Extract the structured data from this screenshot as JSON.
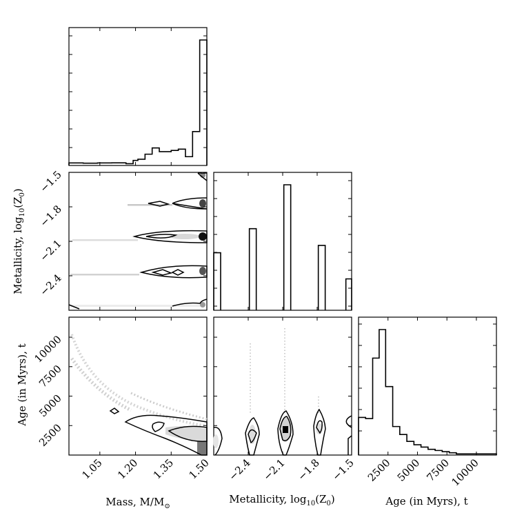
{
  "chart_data": [
    {
      "panel": "hist-mass",
      "type": "histogram",
      "variable": "mass",
      "xlim": [
        0.92,
        1.5
      ],
      "bins": [
        {
          "x0": 0.92,
          "x1": 0.98,
          "v": 2
        },
        {
          "x0": 0.98,
          "x1": 1.04,
          "v": 1.8
        },
        {
          "x0": 1.04,
          "x1": 1.1,
          "v": 2
        },
        {
          "x0": 1.1,
          "x1": 1.16,
          "v": 2.1
        },
        {
          "x0": 1.16,
          "x1": 1.19,
          "v": 1.4
        },
        {
          "x0": 1.19,
          "x1": 1.21,
          "v": 4
        },
        {
          "x0": 1.21,
          "x1": 1.24,
          "v": 5
        },
        {
          "x0": 1.24,
          "x1": 1.27,
          "v": 9
        },
        {
          "x0": 1.27,
          "x1": 1.3,
          "v": 14
        },
        {
          "x0": 1.3,
          "x1": 1.35,
          "v": 11
        },
        {
          "x0": 1.35,
          "x1": 1.38,
          "v": 12
        },
        {
          "x0": 1.38,
          "x1": 1.41,
          "v": 13
        },
        {
          "x0": 1.41,
          "x1": 1.44,
          "v": 7
        },
        {
          "x0": 1.44,
          "x1": 1.47,
          "v": 27
        },
        {
          "x0": 1.47,
          "x1": 1.5,
          "v": 100
        }
      ]
    },
    {
      "panel": "scatter-mass-metallicity",
      "type": "contour",
      "x": "mass",
      "y": "metallicity",
      "xlim": [
        0.92,
        1.5
      ],
      "ylim": [
        -2.7,
        -1.5
      ],
      "rows": [
        -1.5,
        -1.76,
        -2.06,
        -2.36,
        -2.7
      ]
    },
    {
      "panel": "hist-metallicity",
      "type": "histogram",
      "variable": "metallicity",
      "xlim": [
        -2.7,
        -1.5
      ],
      "bins": [
        {
          "x0": -2.7,
          "x1": -2.64,
          "v": 55
        },
        {
          "x0": -2.39,
          "x1": -2.33,
          "v": 78
        },
        {
          "x0": -2.09,
          "x1": -2.03,
          "v": 120
        },
        {
          "x0": -1.79,
          "x1": -1.73,
          "v": 62
        },
        {
          "x0": -1.55,
          "x1": -1.5,
          "v": 30
        }
      ]
    },
    {
      "panel": "scatter-mass-age",
      "type": "contour",
      "x": "mass",
      "y": "age",
      "xlim": [
        0.92,
        1.5
      ],
      "ylim": [
        0,
        11700
      ]
    },
    {
      "panel": "scatter-metallicity-age",
      "type": "contour",
      "x": "metallicity",
      "y": "age",
      "xlim": [
        -2.7,
        -1.5
      ],
      "ylim": [
        0,
        11700
      ]
    },
    {
      "panel": "hist-age",
      "type": "histogram",
      "variable": "age",
      "xlim": [
        0,
        11700
      ],
      "bins": [
        {
          "x0": 0,
          "x1": 600,
          "v": 33
        },
        {
          "x0": 600,
          "x1": 1200,
          "v": 32
        },
        {
          "x0": 1200,
          "x1": 1750,
          "v": 85
        },
        {
          "x0": 1750,
          "x1": 2300,
          "v": 110
        },
        {
          "x0": 2300,
          "x1": 2900,
          "v": 60
        },
        {
          "x0": 2900,
          "x1": 3500,
          "v": 25
        },
        {
          "x0": 3500,
          "x1": 4100,
          "v": 18
        },
        {
          "x0": 4100,
          "x1": 4700,
          "v": 12
        },
        {
          "x0": 4700,
          "x1": 5300,
          "v": 9
        },
        {
          "x0": 5300,
          "x1": 5900,
          "v": 7
        },
        {
          "x0": 5900,
          "x1": 6500,
          "v": 5
        },
        {
          "x0": 6500,
          "x1": 7100,
          "v": 4
        },
        {
          "x0": 7100,
          "x1": 7700,
          "v": 3
        },
        {
          "x0": 7700,
          "x1": 8300,
          "v": 2
        },
        {
          "x0": 8300,
          "x1": 11700,
          "v": 1
        }
      ]
    }
  ],
  "axes": {
    "mass": {
      "label": "Mass, M/M",
      "label_sub": "⊙",
      "ticks": [
        1.05,
        1.2,
        1.35,
        1.5
      ],
      "tick_labels": [
        "1.05",
        "1.20",
        "1.35",
        "1.50"
      ]
    },
    "metallicity": {
      "label": "Metallicity, log",
      "label_sub": "10",
      "label_tail": "(Z",
      "label_tail_sub": "0",
      "label_end": ")",
      "ticks": [
        -2.4,
        -2.1,
        -1.8,
        -1.5
      ],
      "tick_labels_x": [
        "−2.4",
        "−2.1",
        "−1.8",
        "−1.5"
      ],
      "tick_labels_y": [
        "−1.5",
        "−1.8",
        "−2.1",
        "−2.4"
      ]
    },
    "age": {
      "label": "Age (in Myrs), t",
      "ticks": [
        2500,
        5000,
        7500,
        10000
      ],
      "tick_labels": [
        "2500",
        "5000",
        "7500",
        "10000"
      ]
    }
  }
}
